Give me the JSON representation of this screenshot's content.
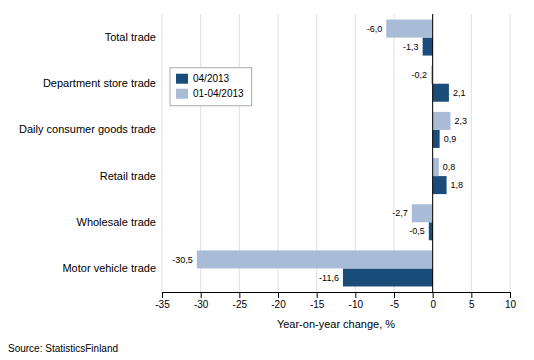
{
  "chart_data": {
    "type": "bar",
    "orientation": "horizontal",
    "categories": [
      "Total trade",
      "Department store trade",
      "Daily consumer goods trade",
      "Retail trade",
      "Wholesale trade",
      "Motor vehicle trade"
    ],
    "series": [
      {
        "name": "04/2013",
        "color": "#1a4d7a",
        "values": [
          -1.3,
          2.1,
          0.9,
          1.8,
          -0.5,
          -11.6
        ],
        "value_labels": [
          "-1,3",
          "2,1",
          "0,9",
          "1,8",
          "-0,5",
          "-11,6"
        ]
      },
      {
        "name": "01-04/2013",
        "color": "#a8bcd8",
        "values": [
          -6.0,
          -0.2,
          2.3,
          0.8,
          -2.7,
          -30.5
        ],
        "value_labels": [
          "-6,0",
          "-0,2",
          "2,3",
          "0,8",
          "-2,7",
          "-30,5"
        ]
      }
    ],
    "xlabel": "Year-on-year change, %",
    "xlim": [
      -35,
      10
    ],
    "xticks": [
      -35,
      -30,
      -25,
      -20,
      -15,
      -10,
      -5,
      0,
      5,
      10
    ],
    "grid": true,
    "legend": "upper left",
    "data_labels": true,
    "source": "Source: StatisticsFinland"
  }
}
